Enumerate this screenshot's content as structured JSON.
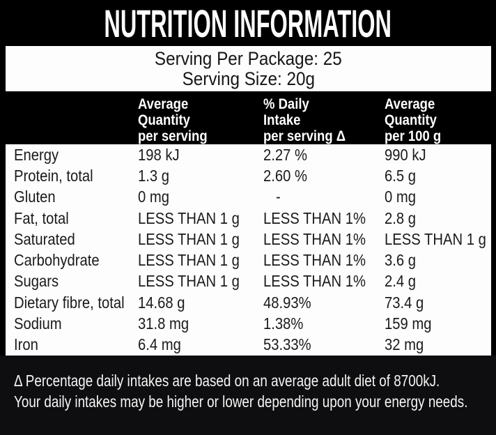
{
  "title": "NUTRITION INFORMATION",
  "serving": {
    "per_package": "Serving Per Package: 25",
    "size": "Serving Size: 20g"
  },
  "table": {
    "columns": [
      {
        "lines": "Average\nQuantity\nper serving"
      },
      {
        "lines": "% Daily\nIntake\nper serving Δ"
      },
      {
        "lines": "Average\nQuantity\nper 100 g"
      }
    ],
    "rows": [
      {
        "label": "Energy",
        "per_serving": "198 kJ",
        "daily_intake": "2.27 %",
        "per_100g": "990 kJ"
      },
      {
        "label": "Protein, total",
        "per_serving": "1.3 g",
        "daily_intake": "2.60 %",
        "per_100g": "6.5 g"
      },
      {
        "label": "Gluten",
        "per_serving": "0 mg",
        "daily_intake": "-",
        "per_100g": "0 mg"
      },
      {
        "label": "Fat, total",
        "per_serving": "LESS THAN 1 g",
        "daily_intake": "LESS THAN 1%",
        "per_100g": "2.8 g"
      },
      {
        "label": "Saturated",
        "per_serving": "LESS THAN 1 g",
        "daily_intake": "LESS THAN 1%",
        "per_100g": "LESS THAN 1 g"
      },
      {
        "label": "Carbohydrate",
        "per_serving": "LESS THAN 1 g",
        "daily_intake": "LESS THAN 1%",
        "per_100g": "3.6 g"
      },
      {
        "label": "Sugars",
        "per_serving": "LESS THAN 1 g",
        "daily_intake": "LESS THAN 1%",
        "per_100g": "2.4 g"
      },
      {
        "label": "Dietary fibre, total",
        "per_serving": "14.68 g",
        "daily_intake": "48.93%",
        "per_100g": "73.4 g"
      },
      {
        "label": "Sodium",
        "per_serving": "31.8 mg",
        "daily_intake": "1.38%",
        "per_100g": "159 mg"
      },
      {
        "label": "Iron",
        "per_serving": "6.4 mg",
        "daily_intake": "53.33%",
        "per_100g": "32 mg"
      }
    ]
  },
  "footnote": {
    "line1": "Δ Percentage daily intakes are based on an average adult diet of 8700kJ.",
    "line2": "Your daily intakes may be higher or lower depending upon your energy needs."
  },
  "colors": {
    "frame": "#000000",
    "panel": "#fdfdfd",
    "footnote_background": "#0e0e10",
    "text_dark": "#1a1a1a",
    "text_light": "#ffffff"
  }
}
